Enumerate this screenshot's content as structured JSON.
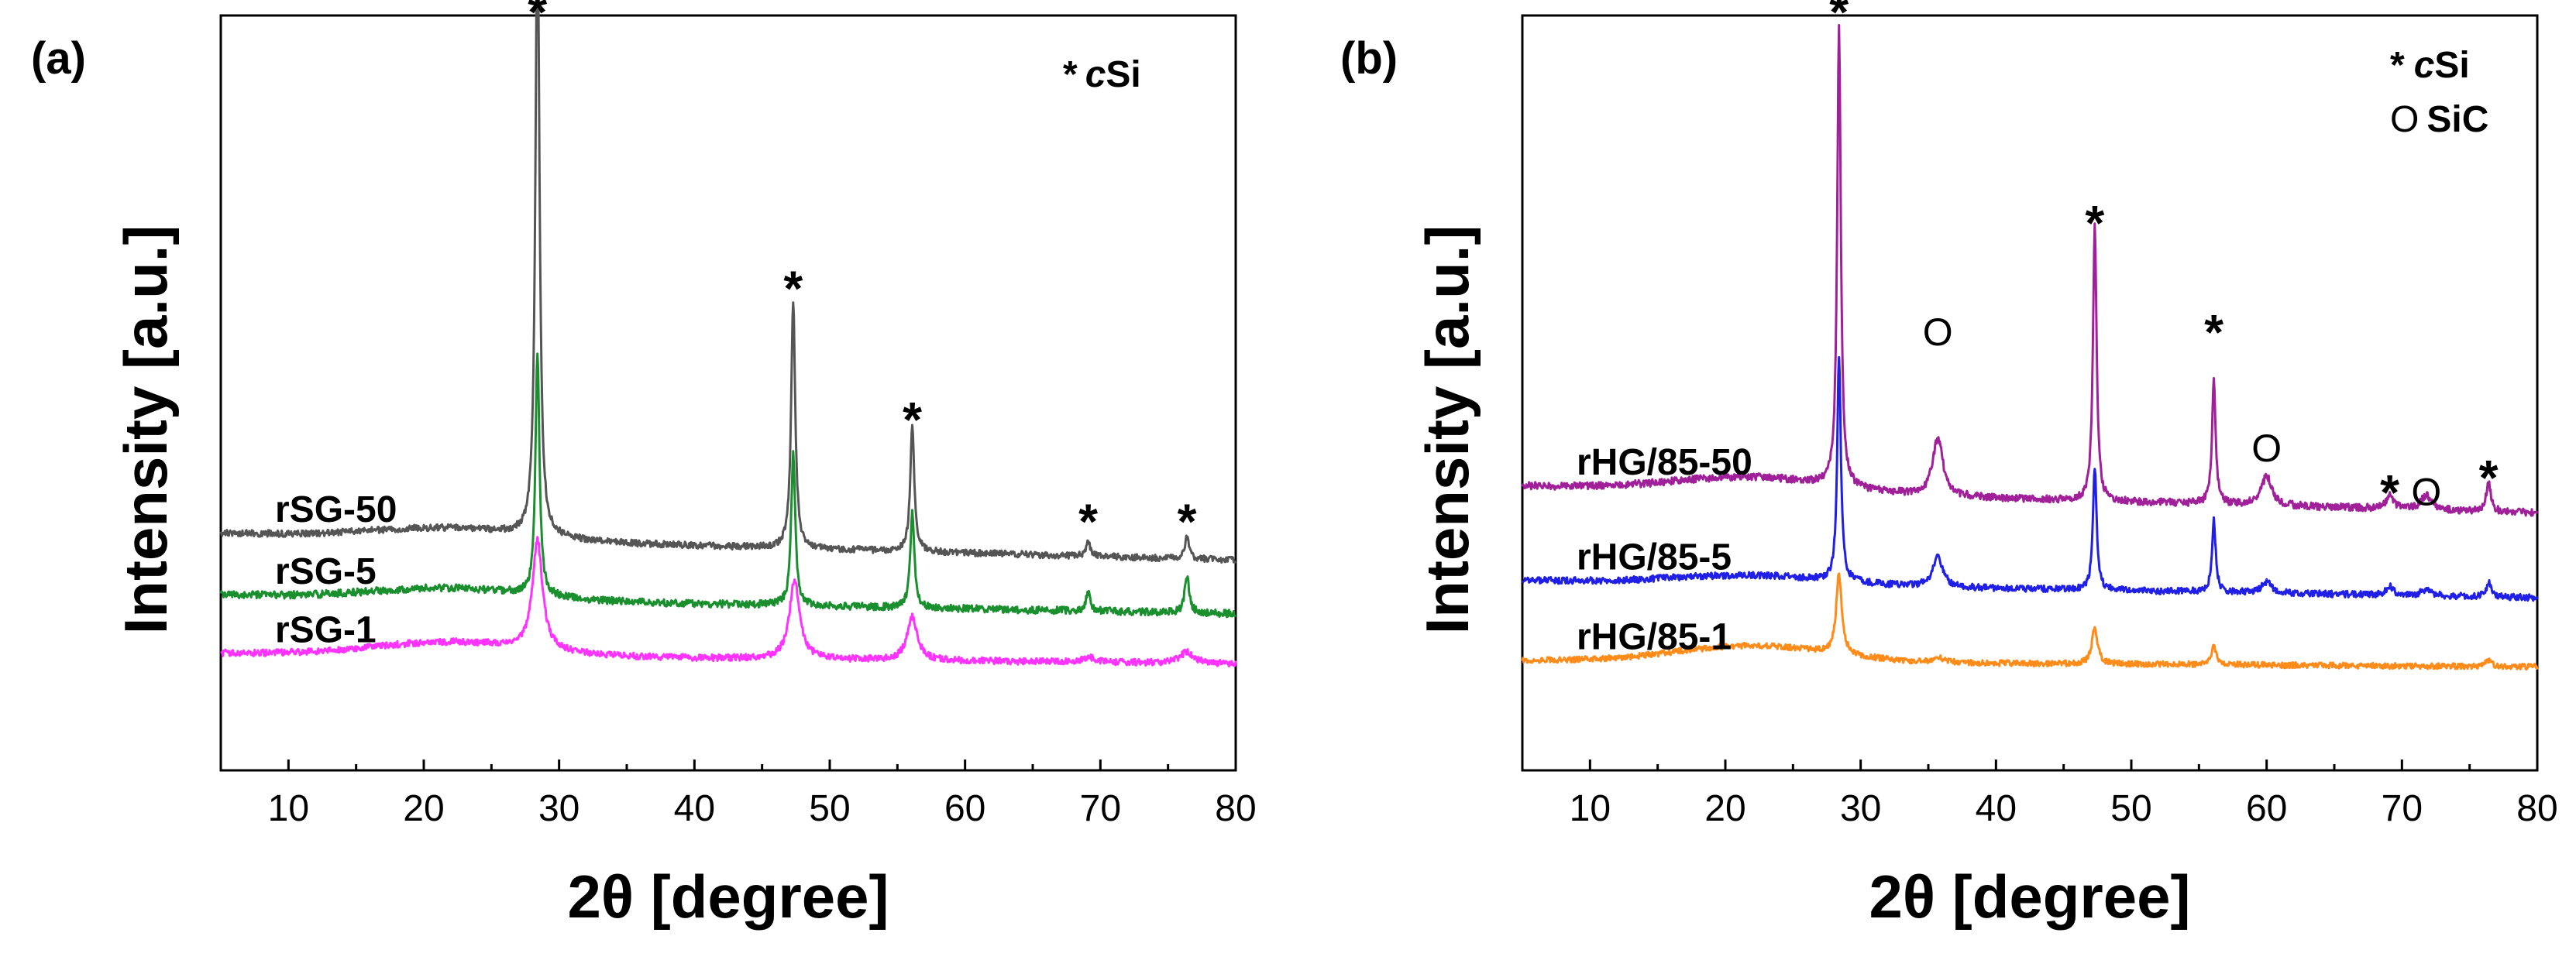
{
  "chart_data": [
    {
      "type": "line",
      "panel_label": "(a)",
      "xlabel": "2θ [degree]",
      "ylabel": "Intensity [a.u.]",
      "xlim": [
        5,
        80
      ],
      "ylim": [
        0,
        100
      ],
      "xticks": [
        10,
        20,
        30,
        40,
        50,
        60,
        70,
        80
      ],
      "legend": [
        {
          "symbol": "*",
          "italic": "c",
          "text": "Si"
        }
      ],
      "series": [
        {
          "name": "rSG-50",
          "color": "#555555",
          "baseline": 30.5,
          "slope": -0.05,
          "hump": 1.5,
          "noise": 0.45,
          "peaks": [
            [
              28.4,
              86,
              0.18
            ],
            [
              47.3,
              34,
              0.18
            ],
            [
              56.1,
              17,
              0.18
            ],
            [
              69.1,
              2,
              0.2
            ],
            [
              76.4,
              3,
              0.2
            ]
          ]
        },
        {
          "name": "rSG-5",
          "color": "#1a8f2e",
          "baseline": 22,
          "slope": -0.035,
          "hump": 1.5,
          "noise": 0.5,
          "peaks": [
            [
              28.4,
              33,
              0.18
            ],
            [
              47.3,
              21,
              0.18
            ],
            [
              56.1,
              13,
              0.18
            ],
            [
              69.1,
              2.5,
              0.2
            ],
            [
              76.4,
              5,
              0.2
            ]
          ]
        },
        {
          "name": "rSG-1",
          "color": "#ff33ff",
          "baseline": 14,
          "slope": -0.02,
          "hump": 1.8,
          "noise": 0.45,
          "peaks": [
            [
              28.4,
              15,
              0.45
            ],
            [
              47.4,
              11,
              0.45
            ],
            [
              56.1,
              6,
              0.45
            ],
            [
              69.2,
              0.6,
              0.6
            ],
            [
              76.4,
              1.6,
              0.6
            ]
          ]
        }
      ],
      "annotations": [
        {
          "symbol": "*",
          "x": 28.4,
          "y": 104
        },
        {
          "symbol": "*",
          "x": 47.3,
          "y": 66
        },
        {
          "symbol": "*",
          "x": 56.1,
          "y": 48
        },
        {
          "symbol": "*",
          "x": 69.1,
          "y": 34
        },
        {
          "symbol": "*",
          "x": 76.4,
          "y": 34
        }
      ]
    },
    {
      "type": "line",
      "panel_label": "(b)",
      "xlabel": "2θ [degree]",
      "ylabel": "Intensity [a.u.]",
      "xlim": [
        5,
        80
      ],
      "ylim": [
        0,
        100
      ],
      "xticks": [
        10,
        20,
        30,
        40,
        50,
        60,
        70,
        80
      ],
      "legend": [
        {
          "symbol": "*",
          "italic": "c",
          "text": "Si"
        },
        {
          "symbol": "O",
          "italic": "",
          "text": "SiC"
        }
      ],
      "series": [
        {
          "name": "rHG/85-50",
          "color": "#a0209a",
          "baseline": 37,
          "slope": -0.05,
          "hump": 2.0,
          "noise": 0.5,
          "peaks": [
            [
              28.4,
              63,
              0.16
            ],
            [
              35.7,
              8,
              0.45
            ],
            [
              47.3,
              38,
              0.16
            ],
            [
              56.1,
              17,
              0.16
            ],
            [
              60.0,
              4,
              0.45
            ],
            [
              69.1,
              2,
              0.3
            ],
            [
              71.8,
              2,
              0.45
            ],
            [
              76.4,
              4,
              0.2
            ]
          ]
        },
        {
          "name": "rHG/85-5",
          "color": "#1f1fe8",
          "baseline": 24,
          "slope": -0.032,
          "hump": 1.2,
          "noise": 0.45,
          "peaks": [
            [
              28.4,
              31,
              0.16
            ],
            [
              35.7,
              4,
              0.45
            ],
            [
              47.3,
              17,
              0.16
            ],
            [
              56.1,
              10,
              0.16
            ],
            [
              60.0,
              1.5,
              0.45
            ],
            [
              69.1,
              1.2,
              0.3
            ],
            [
              71.8,
              0.8,
              0.45
            ],
            [
              76.4,
              2,
              0.2
            ]
          ]
        },
        {
          "name": "rHG/85-1",
          "color": "#ff8c1a",
          "baseline": 13,
          "slope": -0.012,
          "hump": 2.2,
          "noise": 0.4,
          "peaks": [
            [
              28.4,
              11,
              0.25
            ],
            [
              35.7,
              0.6,
              0.5
            ],
            [
              47.3,
              5,
              0.25
            ],
            [
              56.1,
              2.5,
              0.25
            ],
            [
              76.4,
              0.7,
              0.3
            ]
          ]
        }
      ],
      "annotations": [
        {
          "symbol": "*",
          "x": 28.4,
          "y": 104
        },
        {
          "symbol": "O",
          "x": 35.7,
          "y": 58
        },
        {
          "symbol": "*",
          "x": 47.3,
          "y": 75
        },
        {
          "symbol": "*",
          "x": 56.1,
          "y": 60
        },
        {
          "symbol": "O",
          "x": 60.0,
          "y": 42
        },
        {
          "symbol": "*",
          "x": 69.1,
          "y": 38
        },
        {
          "symbol": "O",
          "x": 71.8,
          "y": 36
        },
        {
          "symbol": "*",
          "x": 76.4,
          "y": 40
        }
      ]
    }
  ]
}
